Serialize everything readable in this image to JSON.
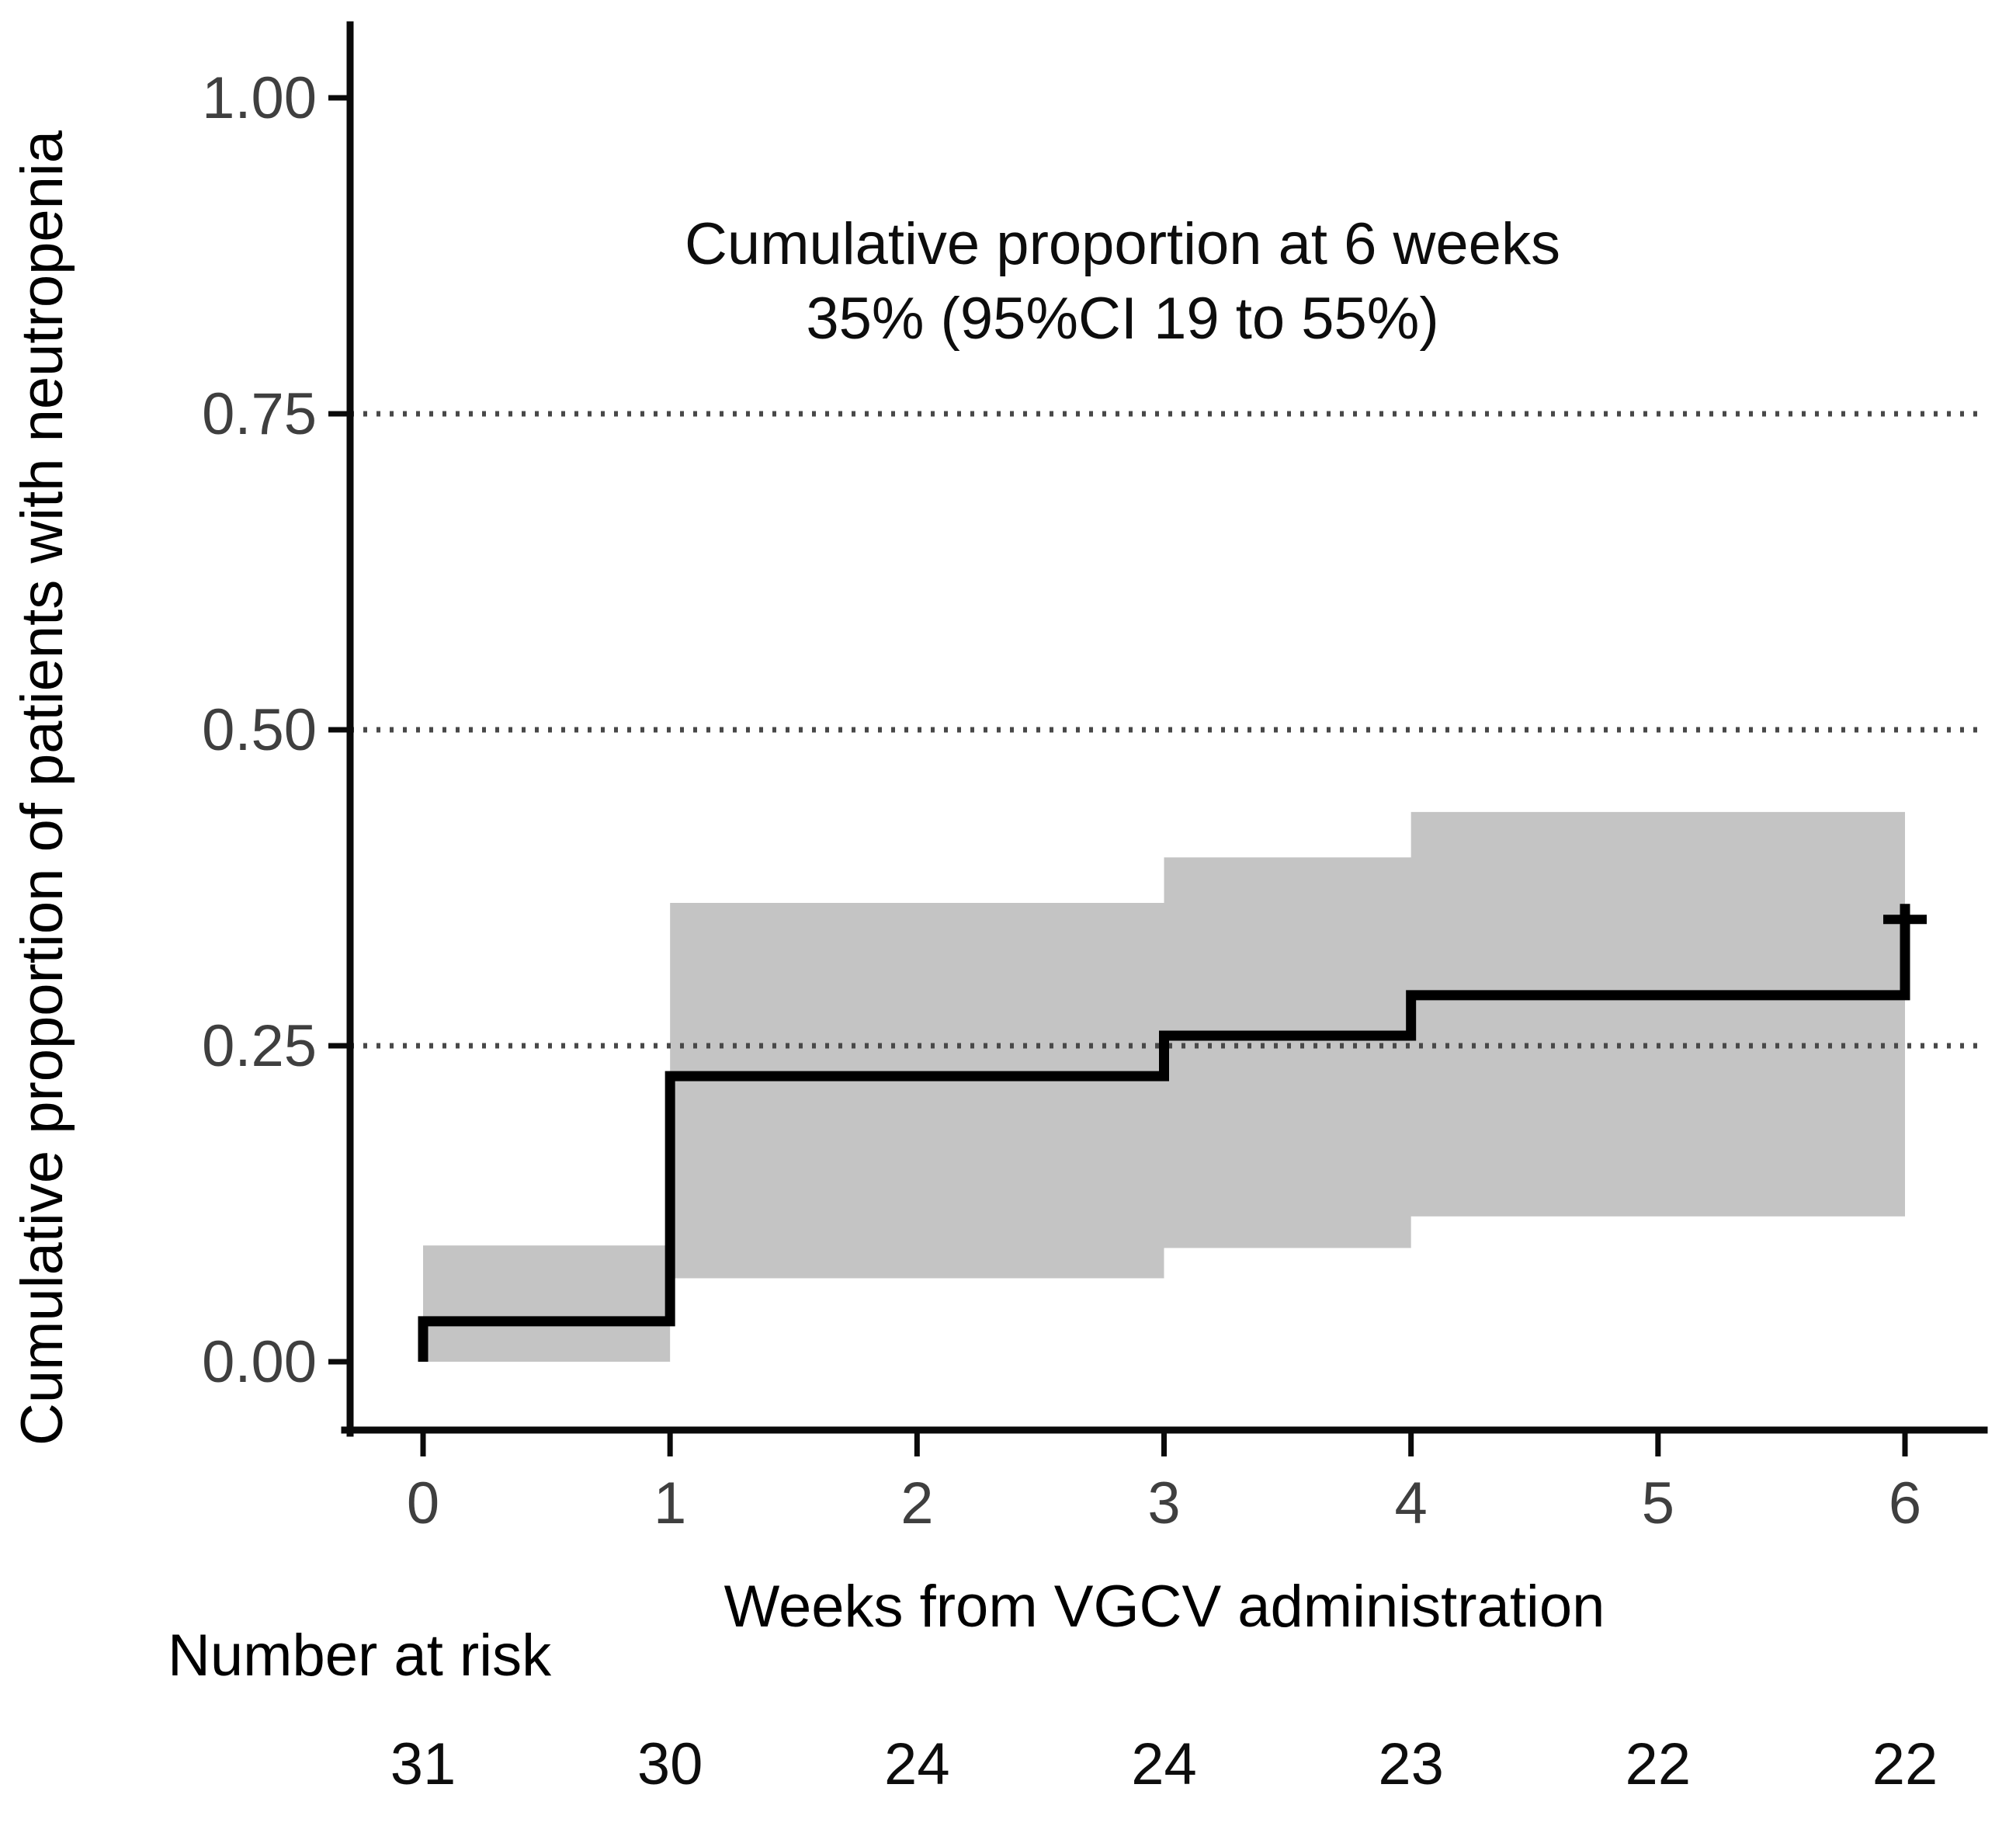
{
  "figure": {
    "background": "#ffffff",
    "description": "Kaplan-Meier style cumulative incidence step plot with 95% confidence band, dotted horizontal gridlines, censor mark at week 6, and number-at-risk table below the x axis"
  },
  "chart_data": {
    "type": "line",
    "subtype": "kaplan-meier-step-cumulative-incidence",
    "annotation": {
      "line1": "Cumulative proportion at 6 weeks",
      "line2": "35% (95%CI 19 to 55%)"
    },
    "xlabel": "Weeks from VGCV administration",
    "ylabel": "Cumulative proportion of patients with neutropenia",
    "xlim": [
      0,
      6
    ],
    "ylim": [
      0,
      1.0
    ],
    "xticks": {
      "values": [
        0,
        1,
        2,
        3,
        4,
        5,
        6
      ],
      "labels": [
        "0",
        "1",
        "2",
        "3",
        "4",
        "5",
        "6"
      ]
    },
    "yticks": {
      "values": [
        0.0,
        0.25,
        0.5,
        0.75,
        1.0
      ],
      "labels": [
        "0.00",
        "0.25",
        "0.50",
        "0.75",
        "1.00"
      ]
    },
    "gridlines": {
      "style": "dotted",
      "at": [
        0.25,
        0.5,
        0.75
      ]
    },
    "legend": "none",
    "series": [
      {
        "name": "Cumulative proportion of patients with neutropenia",
        "color": "#000000",
        "start": {
          "x": 0,
          "y": 0
        },
        "steps": [
          {
            "x": 0,
            "y": 0.032
          },
          {
            "x": 1,
            "y": 0.226
          },
          {
            "x": 3,
            "y": 0.258
          },
          {
            "x": 4,
            "y": 0.29
          },
          {
            "x": 6,
            "y": 0.35
          }
        ],
        "end_x": 6,
        "value_at_6_weeks": 0.35,
        "censor_marks": [
          {
            "x": 6,
            "y": 0.35
          }
        ]
      }
    ],
    "confidence_band": {
      "label": "95% CI",
      "color": "#c4c4c4",
      "segments": [
        {
          "x_start": 0,
          "x_end": 1,
          "lower": 0.0,
          "upper": 0.092
        },
        {
          "x_start": 1,
          "x_end": 3,
          "lower": 0.066,
          "upper": 0.363
        },
        {
          "x_start": 3,
          "x_end": 4,
          "lower": 0.09,
          "upper": 0.399
        },
        {
          "x_start": 4,
          "x_end": 6,
          "lower": 0.115,
          "upper": 0.435
        }
      ]
    },
    "number_at_risk": {
      "label": "Number at risk",
      "weeks": [
        0,
        1,
        2,
        3,
        4,
        5,
        6
      ],
      "values": [
        "31",
        "30",
        "24",
        "24",
        "23",
        "22",
        "22"
      ]
    },
    "colors": {
      "curve": "#000000",
      "ci_band": "#c4c4c4",
      "gridline": "#484848",
      "axis": "#0a0a0a",
      "tick_label": "#3f3f3f"
    }
  }
}
